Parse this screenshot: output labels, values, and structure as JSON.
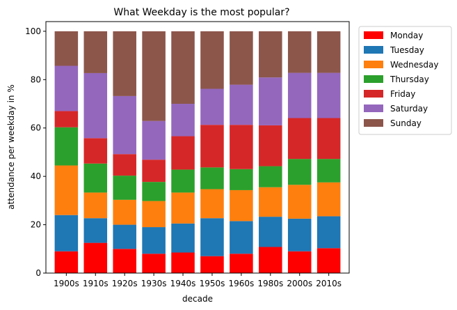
{
  "chart_data": {
    "type": "bar",
    "stacked": true,
    "title": "What Weekday is the most popular?",
    "xlabel": "decade",
    "ylabel": "attendance per weekday in %",
    "ylim": [
      0,
      104
    ],
    "yticks": [
      0,
      20,
      40,
      60,
      80,
      100
    ],
    "grid": false,
    "legend_position": "outside-right-top",
    "categories": [
      "1900s",
      "1910s",
      "1920s",
      "1930s",
      "1940s",
      "1950s",
      "1960s",
      "1980s",
      "2000s",
      "2010s"
    ],
    "series": [
      {
        "name": "Monday",
        "color": "#ff0000",
        "values": [
          9.0,
          12.5,
          10.0,
          8.0,
          8.5,
          7.0,
          8.0,
          10.8,
          9.0,
          10.3
        ]
      },
      {
        "name": "Tuesday",
        "color": "#1f77b4",
        "values": [
          15.0,
          10.2,
          10.0,
          11.0,
          12.0,
          15.7,
          13.5,
          12.5,
          13.5,
          13.2
        ]
      },
      {
        "name": "Wednesday",
        "color": "#ff7f0e",
        "values": [
          20.5,
          10.6,
          10.3,
          10.8,
          12.8,
          12.0,
          12.8,
          12.2,
          14.0,
          14.0
        ]
      },
      {
        "name": "Thursday",
        "color": "#2ca02c",
        "values": [
          15.8,
          12.0,
          10.0,
          7.9,
          9.5,
          9.0,
          8.7,
          8.7,
          10.7,
          9.7
        ]
      },
      {
        "name": "Friday",
        "color": "#d62728",
        "values": [
          6.7,
          10.5,
          8.9,
          9.2,
          13.8,
          17.6,
          18.3,
          16.9,
          16.9,
          16.9
        ]
      },
      {
        "name": "Saturday",
        "color": "#9467bd",
        "values": [
          18.7,
          26.9,
          24.0,
          16.0,
          13.4,
          14.9,
          16.6,
          19.8,
          18.7,
          18.7
        ]
      },
      {
        "name": "Sunday",
        "color": "#8c564b",
        "values": [
          14.3,
          17.3,
          26.8,
          37.1,
          30.0,
          23.8,
          22.1,
          19.1,
          17.2,
          17.2
        ]
      }
    ]
  }
}
